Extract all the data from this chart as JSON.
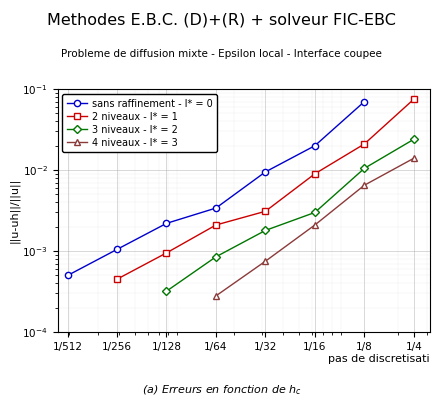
{
  "title": "Methodes E.B.C. (D)+(R) + solveur FIC-EBC",
  "subtitle": "Probleme de diffusion mixte - Epsilon local - Interface coupee",
  "xlabel": "pas de discretisati",
  "ylabel": "||u-uh||/||u||",
  "series": [
    {
      "label": "sans raffinement - l* = 0",
      "color": "#0000cc",
      "marker": "o",
      "markerfacecolor": "white",
      "x_denominators": [
        512,
        256,
        128,
        64,
        32,
        16,
        8
      ],
      "y": [
        0.0005,
        0.00105,
        0.0022,
        0.0034,
        0.0095,
        0.02,
        0.07
      ]
    },
    {
      "label": "2 niveaux - l* = 1",
      "color": "#cc0000",
      "marker": "s",
      "markerfacecolor": "white",
      "x_denominators": [
        256,
        128,
        64,
        32,
        16,
        8,
        4
      ],
      "y": [
        0.00045,
        0.00095,
        0.0021,
        0.0031,
        0.009,
        0.021,
        0.075
      ]
    },
    {
      "label": "3 niveaux - l* = 2",
      "color": "#007700",
      "marker": "D",
      "markerfacecolor": "white",
      "x_denominators": [
        128,
        64,
        32,
        16,
        8,
        4
      ],
      "y": [
        0.00032,
        0.00085,
        0.0018,
        0.003,
        0.0105,
        0.024
      ]
    },
    {
      "label": "4 niveaux - l* = 3",
      "color": "#8B3A3A",
      "marker": "^",
      "markerfacecolor": "white",
      "x_denominators": [
        64,
        32,
        16,
        8,
        4
      ],
      "y": [
        0.00028,
        0.00075,
        0.0021,
        0.0065,
        0.014
      ]
    }
  ],
  "xlim_denominators": [
    512,
    4
  ],
  "ylim": [
    0.0001,
    0.1
  ],
  "xtick_denominators": [
    512,
    256,
    128,
    64,
    32,
    16,
    8,
    4
  ],
  "title_fontsize": 11.5,
  "subtitle_fontsize": 7.5,
  "legend_fontsize": 7,
  "axis_fontsize": 8,
  "tick_fontsize": 7.5,
  "caption": "(a) Erreurs en fonction de $h_c$"
}
